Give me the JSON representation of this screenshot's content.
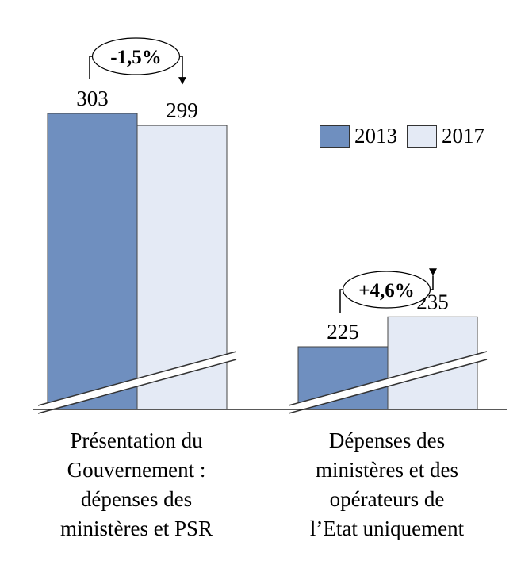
{
  "chart_data": {
    "type": "bar",
    "title": "",
    "xlabel": "",
    "ylabel": "",
    "axis_break": true,
    "categories": [
      "Présentation du\nGouvernement :\ndépenses des\nministères et PSR",
      "Dépenses des\nministères et des\nopérateurs de\nl’Etat uniquement"
    ],
    "series": [
      {
        "name": "2013",
        "values": [
          303,
          225
        ],
        "color": "#6f8fbf"
      },
      {
        "name": "2017",
        "values": [
          299,
          235
        ],
        "color": "#e4eaf5"
      }
    ],
    "annotations": [
      {
        "category_index": 0,
        "text": "-1,5%"
      },
      {
        "category_index": 1,
        "text": "+4,6%"
      }
    ],
    "legend_position": "right"
  }
}
